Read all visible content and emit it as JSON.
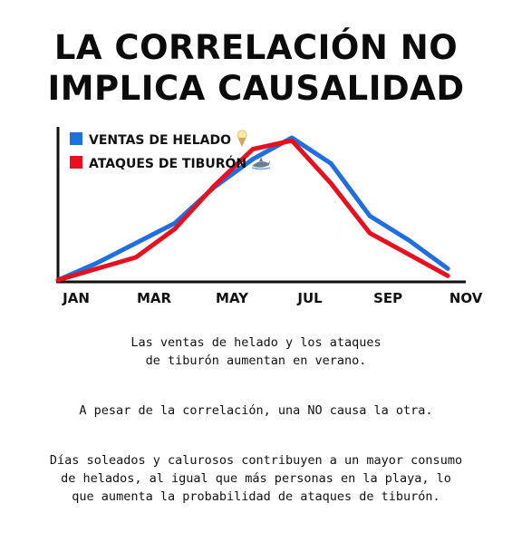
{
  "title_lines": [
    "LA CORRELACIÓN NO",
    "IMPLICA CAUSALIDAD"
  ],
  "chart_data": {
    "type": "line",
    "x_tick_labels": [
      "JAN",
      "MAR",
      "MAY",
      "JUL",
      "SEP",
      "NOV"
    ],
    "series": [
      {
        "name": "VENTAS DE HELADO",
        "color": "#1f6fe0",
        "icon": "ice-cream-icon",
        "points": [
          [
            0,
            0
          ],
          [
            1,
            12
          ],
          [
            2,
            26
          ],
          [
            3,
            40
          ],
          [
            4,
            65
          ],
          [
            5,
            85
          ],
          [
            6,
            100
          ],
          [
            7,
            82
          ],
          [
            8,
            45
          ],
          [
            9,
            28
          ],
          [
            10,
            8
          ]
        ]
      },
      {
        "name": "ATAQUES DE TIBURÓN",
        "color": "#e8101e",
        "icon": "shark-icon",
        "points": [
          [
            0,
            0
          ],
          [
            1,
            8
          ],
          [
            2,
            16
          ],
          [
            3,
            36
          ],
          [
            4,
            66
          ],
          [
            5,
            92
          ],
          [
            6,
            98
          ],
          [
            7,
            68
          ],
          [
            8,
            33
          ],
          [
            9,
            18
          ],
          [
            10,
            3
          ]
        ]
      }
    ],
    "x_range": [
      0,
      10.3
    ],
    "y_range": [
      0,
      100
    ],
    "grid": false,
    "legend_position": "top-left"
  },
  "captions": [
    [
      "Las ventas de helado y los ataques",
      "de tiburón aumentan en verano."
    ],
    [
      "A pesar de la correlación, una NO causa la otra."
    ],
    [
      "Días soleados y calurosos contribuyen a un mayor consumo",
      "de helados, al igual que más personas en la playa, lo",
      "que aumenta la probabilidad de ataques de tiburón."
    ]
  ]
}
